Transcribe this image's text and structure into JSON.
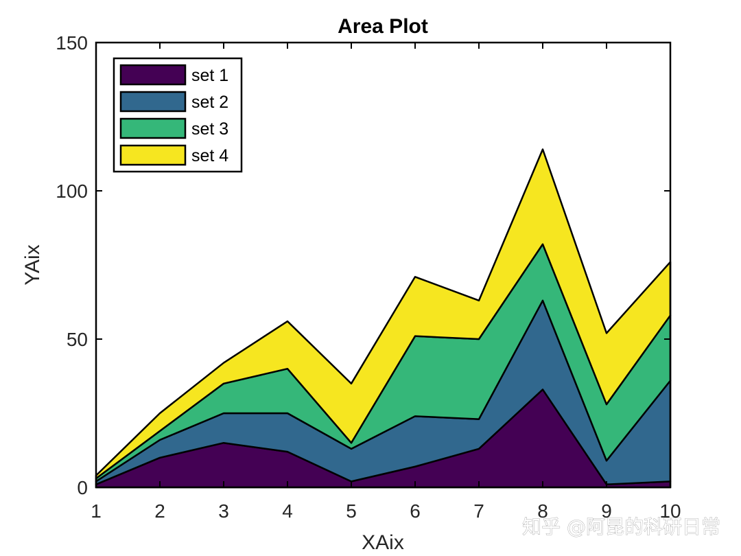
{
  "chart_data": {
    "type": "area",
    "stacked": true,
    "title": "Area Plot",
    "xlabel": "XAix",
    "ylabel": "YAix",
    "x": [
      1,
      2,
      3,
      4,
      5,
      6,
      7,
      8,
      9,
      10
    ],
    "xlim": [
      1,
      10
    ],
    "ylim": [
      0,
      150
    ],
    "xticks": [
      1,
      2,
      3,
      4,
      5,
      6,
      7,
      8,
      9,
      10
    ],
    "yticks": [
      0,
      50,
      100,
      150
    ],
    "grid": false,
    "legend_position": "top-left",
    "series": [
      {
        "name": "set 1",
        "color": "#440154",
        "values": [
          1,
          10,
          15,
          12,
          2,
          7,
          13,
          33,
          1,
          2
        ]
      },
      {
        "name": "set 2",
        "color": "#31688e",
        "values": [
          1,
          6,
          10,
          13,
          11,
          17,
          10,
          30,
          8,
          34
        ]
      },
      {
        "name": "set 3",
        "color": "#35b779",
        "values": [
          1,
          3,
          10,
          15,
          2,
          27,
          27,
          19,
          19,
          22
        ]
      },
      {
        "name": "set 4",
        "color": "#f6e620",
        "values": [
          1,
          6,
          7,
          16,
          20,
          20,
          13,
          32,
          24,
          18
        ]
      }
    ]
  },
  "watermark": "知乎 @阿昆的科研日常"
}
